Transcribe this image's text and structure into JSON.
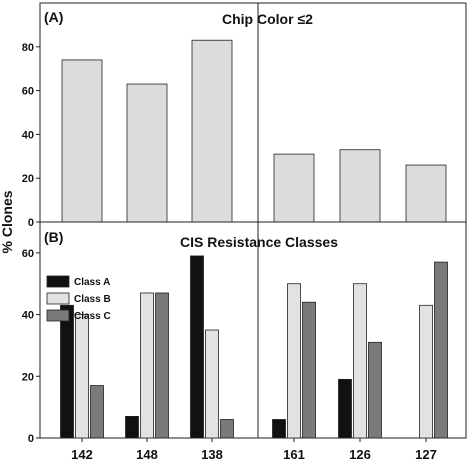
{
  "chart_data": [
    {
      "type": "bar",
      "panel_label": "(A)",
      "title": "Chip Color ≤2",
      "categories": [
        "142",
        "148",
        "138",
        "161",
        "126",
        "127"
      ],
      "series": [
        {
          "values": [
            74,
            63,
            83,
            31,
            33,
            26
          ],
          "color": "#dcdcdc"
        }
      ],
      "ylim": [
        0,
        100
      ],
      "yticks": [
        0,
        20,
        40,
        60,
        80
      ],
      "group_divider_after_index": 2
    },
    {
      "type": "bar",
      "panel_label": "(B)",
      "title": "CIS Resistance Classes",
      "categories": [
        "142",
        "148",
        "138",
        "161",
        "126",
        "127"
      ],
      "series": [
        {
          "name": "Class A",
          "values": [
            43,
            7,
            59,
            6,
            19,
            0
          ],
          "color": "#111111"
        },
        {
          "name": "Class B",
          "values": [
            40,
            47,
            35,
            50,
            50,
            43
          ],
          "color": "#e2e2e2"
        },
        {
          "name": "Class C",
          "values": [
            17,
            47,
            6,
            44,
            31,
            57
          ],
          "color": "#7a7a7a"
        }
      ],
      "ylim": [
        0,
        70
      ],
      "yticks": [
        0,
        20,
        40,
        60
      ],
      "legend_position": "top-left",
      "group_divider_after_index": 2
    }
  ],
  "shared": {
    "ylabel": "% Clones"
  }
}
